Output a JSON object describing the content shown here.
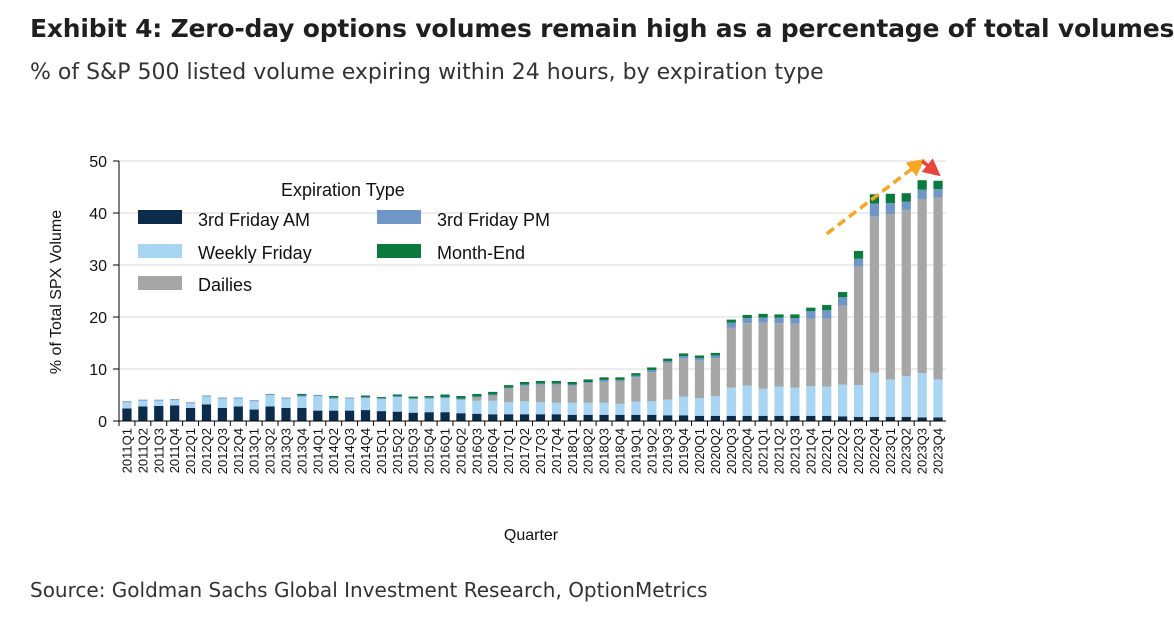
{
  "header": {
    "title": "Exhibit 4: Zero-day options volumes remain high as a percentage of total volumes",
    "subtitle": "% of S&P 500 listed volume expiring within 24 hours, by expiration type"
  },
  "footer": {
    "source": "Source: Goldman Sachs Global Investment Research, OptionMetrics"
  },
  "chart_data": {
    "type": "bar",
    "stacked": true,
    "xlabel": "Quarter",
    "ylabel": "% of Total SPX Volume",
    "ylim": [
      0,
      50
    ],
    "yticks": [
      0,
      10,
      20,
      30,
      40,
      50
    ],
    "grid": true,
    "legend_title": "Expiration Type",
    "legend_position": "top-left",
    "categories": [
      "2011Q1",
      "2011Q2",
      "2011Q3",
      "2011Q4",
      "2012Q1",
      "2012Q2",
      "2012Q3",
      "2012Q4",
      "2013Q1",
      "2013Q2",
      "2013Q3",
      "2013Q4",
      "2014Q1",
      "2014Q2",
      "2014Q3",
      "2014Q4",
      "2015Q1",
      "2015Q2",
      "2015Q3",
      "2015Q4",
      "2016Q1",
      "2016Q2",
      "2016Q3",
      "2016Q4",
      "2017Q1",
      "2017Q2",
      "2017Q3",
      "2017Q4",
      "2018Q1",
      "2018Q2",
      "2018Q3",
      "2018Q4",
      "2019Q1",
      "2019Q2",
      "2019Q3",
      "2019Q4",
      "2020Q1",
      "2020Q2",
      "2020Q3",
      "2020Q4",
      "2021Q1",
      "2021Q2",
      "2021Q3",
      "2021Q4",
      "2022Q1",
      "2022Q2",
      "2022Q3",
      "2022Q4",
      "2023Q1",
      "2023Q2",
      "2023Q3",
      "2023Q4"
    ],
    "series": [
      {
        "name": "3rd Friday AM",
        "color": "#0b2c4a",
        "values": [
          2.4,
          2.8,
          2.9,
          3.0,
          2.5,
          3.2,
          2.5,
          2.8,
          2.2,
          2.8,
          2.5,
          2.5,
          2.0,
          2.0,
          2.0,
          2.1,
          1.9,
          1.8,
          1.6,
          1.7,
          1.7,
          1.5,
          1.4,
          1.3,
          1.3,
          1.3,
          1.3,
          1.3,
          1.2,
          1.2,
          1.2,
          1.2,
          1.2,
          1.2,
          1.1,
          1.1,
          1.0,
          1.0,
          1.0,
          1.0,
          1.0,
          1.0,
          1.0,
          1.0,
          1.0,
          0.9,
          0.8,
          0.8,
          0.8,
          0.8,
          0.7,
          0.7
        ]
      },
      {
        "name": "Weekly Friday",
        "color": "#a8d5f2",
        "values": [
          1.2,
          1.1,
          1.0,
          1.0,
          0.9,
          1.5,
          1.8,
          1.5,
          1.6,
          2.2,
          1.8,
          2.2,
          2.8,
          2.3,
          2.3,
          2.3,
          2.3,
          2.8,
          2.6,
          2.6,
          2.7,
          2.6,
          2.5,
          2.6,
          2.3,
          2.5,
          2.3,
          2.2,
          2.3,
          2.3,
          2.3,
          2.1,
          2.5,
          2.6,
          3.0,
          3.6,
          3.4,
          3.8,
          5.4,
          5.8,
          5.2,
          5.6,
          5.4,
          5.7,
          5.6,
          6.1,
          6.1,
          8.5,
          7.2,
          7.8,
          8.5,
          7.3
        ]
      },
      {
        "name": "Dailies",
        "color": "#a6a6a6",
        "values": [
          0,
          0,
          0,
          0,
          0,
          0,
          0,
          0,
          0,
          0,
          0,
          0,
          0,
          0,
          0,
          0,
          0,
          0,
          0,
          0,
          0,
          0,
          0.6,
          1.0,
          2.6,
          3.0,
          3.4,
          3.5,
          3.3,
          3.8,
          4.1,
          4.3,
          4.7,
          5.6,
          7.0,
          7.3,
          7.2,
          7.3,
          11.5,
          12.0,
          12.7,
          12.2,
          12.3,
          13.0,
          13.1,
          15.2,
          22.8,
          30.0,
          31.8,
          32.0,
          33.5,
          35.0
        ]
      },
      {
        "name": "3rd Friday PM",
        "color": "#7096c8",
        "values": [
          0.2,
          0.2,
          0.2,
          0.2,
          0.2,
          0.2,
          0.2,
          0.2,
          0.2,
          0.2,
          0.2,
          0.2,
          0.2,
          0.2,
          0.2,
          0.2,
          0.2,
          0.2,
          0.2,
          0.2,
          0.2,
          0.2,
          0.2,
          0.2,
          0.2,
          0.2,
          0.2,
          0.2,
          0.2,
          0.2,
          0.3,
          0.3,
          0.3,
          0.4,
          0.4,
          0.5,
          0.5,
          0.5,
          1.0,
          1.0,
          1.0,
          1.1,
          1.1,
          1.4,
          1.6,
          1.6,
          1.5,
          2.5,
          2.1,
          1.6,
          1.8,
          1.6
        ]
      },
      {
        "name": "Month-End",
        "color": "#0b7a3d",
        "values": [
          0,
          0,
          0,
          0,
          0,
          0,
          0,
          0,
          0,
          0,
          0,
          0.3,
          0,
          0.3,
          0,
          0.3,
          0.2,
          0.3,
          0.3,
          0.3,
          0.5,
          0.5,
          0.5,
          0.5,
          0.5,
          0.5,
          0.5,
          0.5,
          0.5,
          0.5,
          0.5,
          0.5,
          0.5,
          0.5,
          0.5,
          0.5,
          0.5,
          0.5,
          0.6,
          0.6,
          0.7,
          0.6,
          0.7,
          0.7,
          1.0,
          1.0,
          1.5,
          1.8,
          1.8,
          1.6,
          1.8,
          1.6
        ]
      }
    ],
    "annotations": [
      {
        "type": "arrow",
        "color": "#f5a623",
        "style": "dashed",
        "from_category": "2022Q1",
        "from_value": 36,
        "to_category": "2023Q3",
        "to_value": 50
      },
      {
        "type": "arrow",
        "color": "#e8453c",
        "style": "dashed",
        "from_category": "2023Q3",
        "from_value": 50,
        "to_category": "2023Q4",
        "to_value": 47.5
      }
    ]
  }
}
